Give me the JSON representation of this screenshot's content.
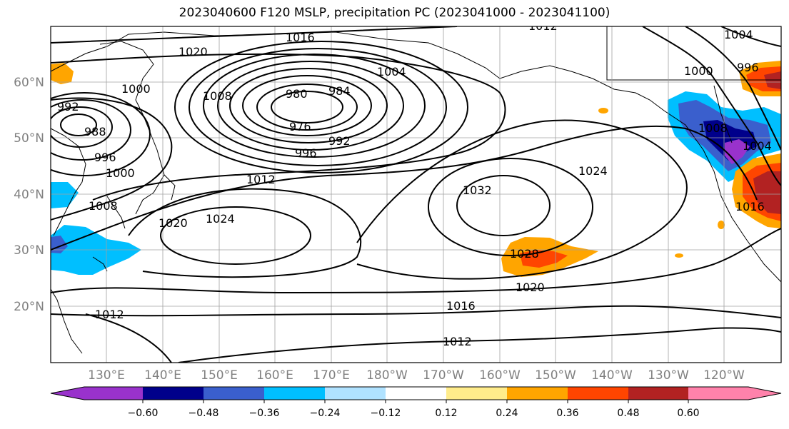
{
  "title": "2023040600 F120 MSLP, precipitation PC (2023041000 - 2023041100)",
  "map": {
    "lat_labels": [
      "60°N",
      "50°N",
      "40°N",
      "30°N",
      "20°N"
    ],
    "lon_labels": [
      "130°E",
      "140°E",
      "150°E",
      "160°E",
      "170°E",
      "180°W",
      "170°W",
      "160°W",
      "150°W",
      "140°W",
      "130°W",
      "120°W"
    ],
    "contour_labels": [
      "1016",
      "1020",
      "1004",
      "1000",
      "992",
      "988",
      "996",
      "1000",
      "1008",
      "1020",
      "1024",
      "1012",
      "980",
      "984",
      "976",
      "992",
      "996",
      "1008",
      "1032",
      "1024",
      "1028",
      "1020",
      "1016",
      "1012",
      "1012",
      "1000",
      "996",
      "1004",
      "1016",
      "1004",
      "1012",
      "1008"
    ],
    "pressure_systems": {
      "low_center_hpa": 976,
      "high_center_hpa": 1032
    }
  },
  "colorbar": {
    "ticks": [
      "−0.60",
      "−0.48",
      "−0.36",
      "−0.24",
      "−0.12",
      "0.12",
      "0.24",
      "0.36",
      "0.48",
      "0.60"
    ],
    "colors": [
      "#9932cc",
      "#00008b",
      "#3a5fcd",
      "#00bfff",
      "#b0e2ff",
      "#ffffff",
      "#ffec8b",
      "#ffa500",
      "#ff4500",
      "#b22222",
      "#ff82ab"
    ]
  },
  "chart_data": {
    "type": "heatmap",
    "title": "2023040600 F120 MSLP, precipitation PC (2023041000 - 2023041100)",
    "variable": "precipitation PC",
    "contour_field": "MSLP (hPa)",
    "levels": [
      -0.6,
      -0.48,
      -0.36,
      -0.24,
      -0.12,
      0.12,
      0.24,
      0.36,
      0.48,
      0.6
    ],
    "contour_levels_hpa": [
      976,
      980,
      984,
      988,
      992,
      996,
      1000,
      1004,
      1008,
      1012,
      1016,
      1020,
      1024,
      1028,
      1032
    ],
    "xlim": [
      "120°E",
      "115°W"
    ],
    "ylim": [
      "10°N",
      "70°N"
    ],
    "grid": true
  }
}
